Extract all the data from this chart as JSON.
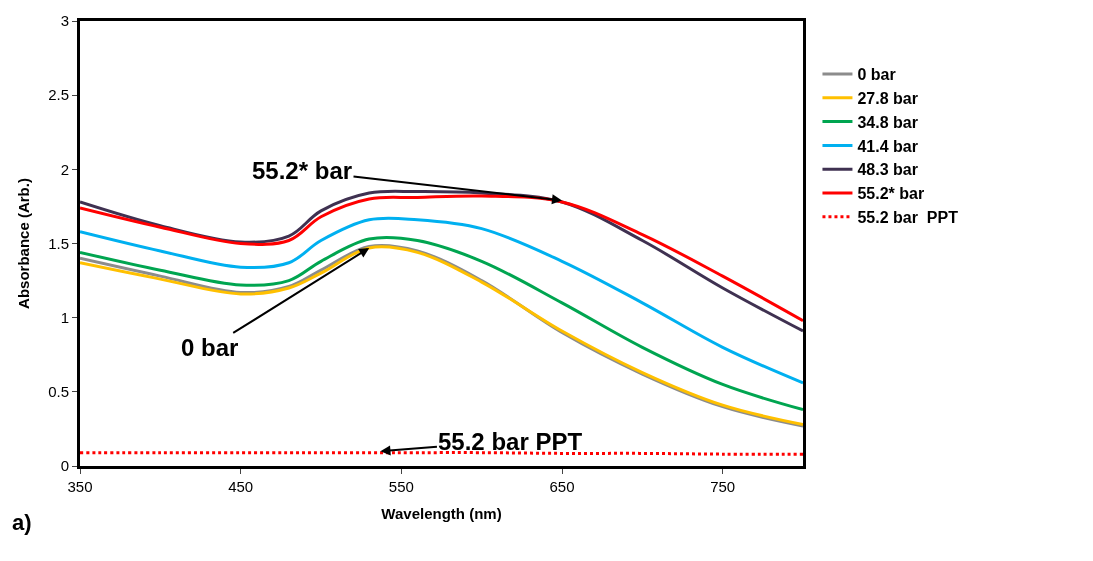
{
  "chart_data": {
    "type": "line",
    "xlabel": "Wavelength (nm)",
    "ylabel": "Absorbance (Arb.)",
    "x": [
      350,
      400,
      450,
      480,
      500,
      530,
      560,
      600,
      650,
      700,
      750,
      800
    ],
    "xlim": [
      350,
      800
    ],
    "xticks": [
      350,
      450,
      550,
      650,
      750
    ],
    "ylim": [
      0,
      3
    ],
    "yticks": [
      0,
      0.5,
      1,
      1.5,
      2,
      2.5,
      3
    ],
    "legend": "right",
    "marker": "none",
    "line_style": "solid",
    "series": [
      {
        "name": "0 bar",
        "color": "#8c8c8c",
        "values": [
          1.4,
          1.28,
          1.17,
          1.21,
          1.32,
          1.48,
          1.45,
          1.25,
          0.9,
          0.62,
          0.4,
          0.27
        ]
      },
      {
        "name": "27.8 bar",
        "color": "#ffc000",
        "values": [
          1.37,
          1.26,
          1.16,
          1.2,
          1.3,
          1.47,
          1.44,
          1.24,
          0.91,
          0.63,
          0.41,
          0.28
        ]
      },
      {
        "name": "34.8 bar",
        "color": "#00a550",
        "values": [
          1.44,
          1.32,
          1.22,
          1.25,
          1.38,
          1.53,
          1.52,
          1.38,
          1.1,
          0.8,
          0.55,
          0.38
        ]
      },
      {
        "name": "41.4 bar",
        "color": "#00b0f0",
        "values": [
          1.58,
          1.45,
          1.34,
          1.37,
          1.52,
          1.66,
          1.66,
          1.6,
          1.38,
          1.1,
          0.8,
          0.56
        ]
      },
      {
        "name": "48.3 bar",
        "color": "#3f3151",
        "values": [
          1.78,
          1.62,
          1.51,
          1.55,
          1.72,
          1.84,
          1.85,
          1.84,
          1.78,
          1.52,
          1.2,
          0.91
        ]
      },
      {
        "name": "55.2* bar",
        "color": "#ff0000",
        "values": [
          1.74,
          1.61,
          1.5,
          1.52,
          1.68,
          1.8,
          1.81,
          1.82,
          1.78,
          1.56,
          1.28,
          0.98
        ]
      },
      {
        "name": "55.2 bar  PPT",
        "color": "#ff0000",
        "line_style": "dotted",
        "values": [
          0.09,
          0.09,
          0.09,
          0.09,
          0.09,
          0.09,
          0.09,
          0.09,
          0.085,
          0.085,
          0.08,
          0.08
        ]
      }
    ],
    "annotations": [
      {
        "text": "55.2* bar",
        "x": 650,
        "y": 1.79
      },
      {
        "text": "0 bar",
        "x": 530,
        "y": 1.47
      },
      {
        "text": "55.2 bar PPT",
        "x": 537,
        "y": 0.1
      },
      "a)"
    ]
  }
}
